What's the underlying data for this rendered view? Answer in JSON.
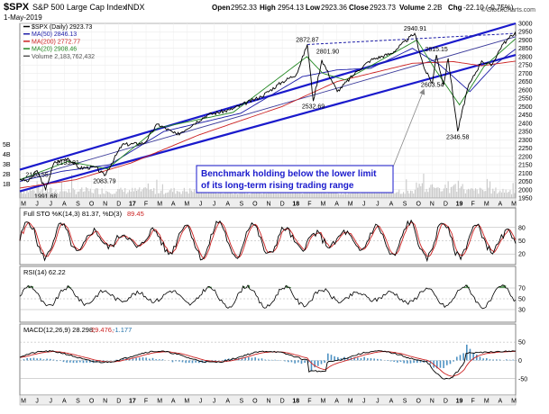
{
  "header": {
    "symbol": "$SPX",
    "name": "S&P 500 Large Cap Index",
    "exchange": "INDX",
    "date": "1-May-2019",
    "open_label": "Open",
    "open": "2952.33",
    "high_label": "High",
    "high": "2954.13",
    "low_label": "Low",
    "low": "2923.36",
    "close_label": "Close",
    "close": "2923.73",
    "volume_label": "Volume",
    "volume": "2.2B",
    "chg_label": "Chg",
    "chg": "-22.10 (-0.75%)",
    "watermark": "© StockCharts.com"
  },
  "legend": [
    {
      "text": "$SPX (Daily) 2923.73",
      "color": "#000000"
    },
    {
      "text": "MA(50) 2846.13",
      "color": "#1a1aa6"
    },
    {
      "text": "MA(200) 2772.77",
      "color": "#cc2222"
    },
    {
      "text": "MA(20) 2908.46",
      "color": "#228822"
    },
    {
      "text": "Volume 2,183,762,432",
      "color": "#555555"
    }
  ],
  "annotation": {
    "line1": "Benchmark holding below the lower limit",
    "line2": "of its long-term rising trading range",
    "color": "#1a1acc"
  },
  "months_top": [
    "M",
    "J",
    "J",
    "A",
    "S",
    "O",
    "N",
    "D",
    "17",
    "F",
    "M",
    "A",
    "M",
    "J",
    "J",
    "A",
    "S",
    "O",
    "N",
    "D",
    "18",
    "F",
    "M",
    "A",
    "M",
    "J",
    "J",
    "A",
    "S",
    "O",
    "N",
    "D",
    "19",
    "F",
    "M",
    "A",
    "M"
  ],
  "months_bottom": [
    "M",
    "J",
    "J",
    "A",
    "S",
    "O",
    "N",
    "D",
    "17",
    "F",
    "M",
    "A",
    "M",
    "J",
    "J",
    "A",
    "S",
    "O",
    "N",
    "D",
    "18",
    "F",
    "M",
    "A",
    "M",
    "J",
    "J",
    "A",
    "S",
    "O",
    "N",
    "D",
    "19",
    "F",
    "M",
    "A",
    "M"
  ],
  "sto": {
    "label": "Full STO %K(14,3) 81.37, %D(3)",
    "d_value": "89.45",
    "ticks": [
      "80",
      "50",
      "20"
    ]
  },
  "rsi": {
    "label": "RSI(14) 62.22",
    "ticks": [
      "70",
      "50",
      "30"
    ]
  },
  "macd": {
    "label": "MACD(12,26,9) 28.298,",
    "signal": "29.476,",
    "hist": "-1.177",
    "ticks": [
      "50",
      "0",
      "-50"
    ]
  },
  "chart_data": {
    "type": "line",
    "title": "$SPX S&P 500 Large Cap Index INDX",
    "x_range": [
      "2016-05-01",
      "2019-05-01"
    ],
    "ylim": [
      1950,
      3000
    ],
    "y_ticks": [
      1950,
      2000,
      2050,
      2100,
      2150,
      2200,
      2250,
      2300,
      2350,
      2400,
      2450,
      2500,
      2550,
      2600,
      2650,
      2700,
      2750,
      2800,
      2850,
      2900,
      2950,
      3000
    ],
    "volume_ticks": [
      "5B",
      "4B",
      "3B",
      "2B",
      "1B"
    ],
    "series": [
      {
        "name": "$SPX (Daily)",
        "points": [
          [
            "2016-05-01",
            2065
          ],
          [
            "2016-05-20",
            2050
          ],
          [
            "2016-06-08",
            2115
          ],
          [
            "2016-06-27",
            2000
          ],
          [
            "2016-07-15",
            2160
          ],
          [
            "2016-08-15",
            2190
          ],
          [
            "2016-09-09",
            2130
          ],
          [
            "2016-10-15",
            2135
          ],
          [
            "2016-11-04",
            2084
          ],
          [
            "2016-12-13",
            2270
          ],
          [
            "2017-01-31",
            2280
          ],
          [
            "2017-03-01",
            2395
          ],
          [
            "2017-04-13",
            2330
          ],
          [
            "2017-06-19",
            2450
          ],
          [
            "2017-08-08",
            2480
          ],
          [
            "2017-10-16",
            2560
          ],
          [
            "2017-11-30",
            2645
          ],
          [
            "2018-01-02",
            2695
          ],
          [
            "2018-01-26",
            2873
          ],
          [
            "2018-02-08",
            2533
          ],
          [
            "2018-02-27",
            2780
          ],
          [
            "2018-04-02",
            2590
          ],
          [
            "2018-05-15",
            2710
          ],
          [
            "2018-06-15",
            2780
          ],
          [
            "2018-07-31",
            2820
          ],
          [
            "2018-09-20",
            2940
          ],
          [
            "2018-10-11",
            2730
          ],
          [
            "2018-10-29",
            2640
          ],
          [
            "2018-11-07",
            2810
          ],
          [
            "2018-11-23",
            2630
          ],
          [
            "2018-12-03",
            2790
          ],
          [
            "2018-12-24",
            2351
          ],
          [
            "2019-01-15",
            2610
          ],
          [
            "2019-02-15",
            2775
          ],
          [
            "2019-03-08",
            2745
          ],
          [
            "2019-04-01",
            2870
          ],
          [
            "2019-04-30",
            2946
          ],
          [
            "2019-05-01",
            2924
          ]
        ]
      },
      {
        "name": "MA(50)",
        "points": [
          [
            "2016-05-01",
            2050
          ],
          [
            "2016-08-01",
            2110
          ],
          [
            "2016-11-15",
            2150
          ],
          [
            "2017-03-15",
            2350
          ],
          [
            "2017-09-01",
            2460
          ],
          [
            "2018-01-15",
            2680
          ],
          [
            "2018-04-01",
            2720
          ],
          [
            "2018-06-15",
            2730
          ],
          [
            "2018-09-15",
            2850
          ],
          [
            "2018-11-15",
            2750
          ],
          [
            "2019-01-20",
            2590
          ],
          [
            "2019-03-15",
            2750
          ],
          [
            "2019-05-01",
            2846
          ]
        ]
      },
      {
        "name": "MA(200)",
        "points": [
          [
            "2016-05-01",
            2010
          ],
          [
            "2016-09-01",
            2060
          ],
          [
            "2017-01-01",
            2160
          ],
          [
            "2017-06-01",
            2330
          ],
          [
            "2017-12-01",
            2500
          ],
          [
            "2018-04-01",
            2650
          ],
          [
            "2018-09-15",
            2760
          ],
          [
            "2018-12-15",
            2770
          ],
          [
            "2019-02-15",
            2745
          ],
          [
            "2019-05-01",
            2773
          ]
        ]
      },
      {
        "name": "MA(20)",
        "points": [
          [
            "2016-05-01",
            2060
          ],
          [
            "2016-08-15",
            2170
          ],
          [
            "2016-11-10",
            2125
          ],
          [
            "2017-03-01",
            2370
          ],
          [
            "2017-08-15",
            2465
          ],
          [
            "2018-01-25",
            2800
          ],
          [
            "2018-03-01",
            2700
          ],
          [
            "2018-04-20",
            2660
          ],
          [
            "2018-09-25",
            2900
          ],
          [
            "2018-11-05",
            2720
          ],
          [
            "2018-12-28",
            2510
          ],
          [
            "2019-02-20",
            2740
          ],
          [
            "2019-05-01",
            2908
          ]
        ]
      }
    ],
    "trendlines": [
      {
        "name": "upper",
        "points": [
          [
            "2016-05-01",
            2120
          ],
          [
            "2019-05-01",
            3000
          ]
        ]
      },
      {
        "name": "lower",
        "points": [
          [
            "2016-05-01",
            1990
          ],
          [
            "2019-05-01",
            2810
          ]
        ]
      },
      {
        "name": "mid",
        "points": [
          [
            "2016-05-01",
            2060
          ],
          [
            "2019-05-01",
            2920
          ]
        ]
      },
      {
        "name": "resistance",
        "points": [
          [
            "2018-01-26",
            2873
          ],
          [
            "2019-05-01",
            2940
          ]
        ]
      }
    ],
    "price_labels": [
      {
        "text": "2193.81",
        "date": "2016-08-15",
        "value": 2193.81
      },
      {
        "text": "2120.55",
        "date": "2016-06-08",
        "value": 2120.55
      },
      {
        "text": "1991.68",
        "date": "2016-06-27",
        "value": 1991.68
      },
      {
        "text": "2083.79",
        "date": "2016-11-04",
        "value": 2083.79
      },
      {
        "text": "2872.87",
        "date": "2018-01-26",
        "value": 2872.87
      },
      {
        "text": "2801.90",
        "date": "2018-03-12",
        "value": 2801.9
      },
      {
        "text": "2532.69",
        "date": "2018-02-08",
        "value": 2532.69
      },
      {
        "text": "2940.91",
        "date": "2018-09-21",
        "value": 2940.91
      },
      {
        "text": "2815.15",
        "date": "2018-11-07",
        "value": 2815.15
      },
      {
        "text": "2603.54",
        "date": "2018-10-29",
        "value": 2603.54
      },
      {
        "text": "2346.58",
        "date": "2018-12-24",
        "value": 2346.58
      }
    ]
  }
}
